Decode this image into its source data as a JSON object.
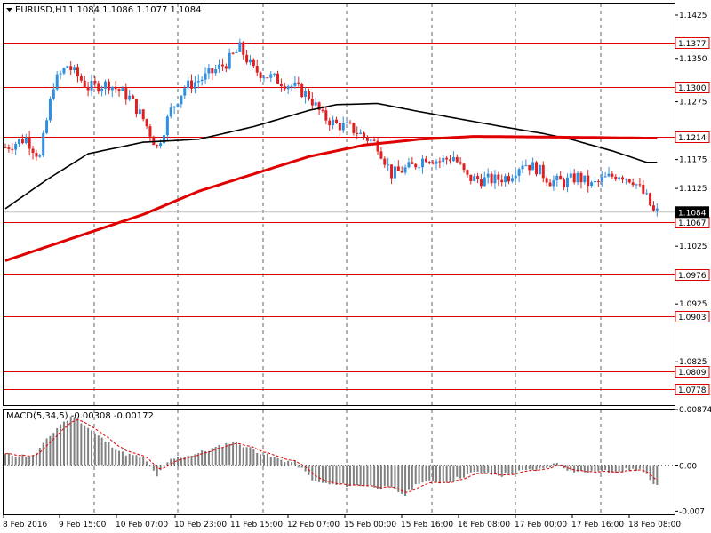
{
  "header": {
    "symbol": "EURUSD,H1",
    "ohlc": "1.1084 1.1086 1.1077 1.1084"
  },
  "indicator": {
    "label": "MACD(5,34,5) -0.00308 -0.00172"
  },
  "colors": {
    "bull": "#2f8fe0",
    "bear": "#e02020",
    "ma_fast": "#000000",
    "ma_slow": "#e00000",
    "level_line": "#e00000",
    "macd_hist": "#808080",
    "macd_signal": "#e00000"
  },
  "chart_data": {
    "type": "candlestick",
    "price_axis": {
      "range": [
        1.075,
        1.1445
      ],
      "ticks": [
        "1.1425",
        "1.1350",
        "1.1275",
        "1.1175",
        "1.1125",
        "1.1025",
        "1.0925",
        "1.0825"
      ]
    },
    "current_price": "1.1084",
    "levels": [
      "1.1377",
      "1.1300",
      "1.1214",
      "1.1067",
      "1.0976",
      "1.0903",
      "1.0809",
      "1.0778"
    ],
    "macd_axis": {
      "range": [
        -0.0075,
        0.00874
      ],
      "ticks": [
        "0.00874",
        "0.00",
        "-0.007"
      ]
    },
    "time_labels": [
      "8 Feb 2016",
      "9 Feb 15:00",
      "10 Feb 07:00",
      "10 Feb 23:00",
      "11 Feb 15:00",
      "12 Feb 07:00",
      "15 Feb 00:00",
      "15 Feb 16:00",
      "16 Feb 08:00",
      "17 Feb 00:00",
      "17 Feb 16:00",
      "18 Feb 08:00"
    ],
    "anchors": [
      [
        0,
        1.1196
      ],
      [
        6,
        1.1212
      ],
      [
        10,
        1.1178
      ],
      [
        14,
        1.1306
      ],
      [
        18,
        1.1338
      ],
      [
        24,
        1.13
      ],
      [
        30,
        1.1306
      ],
      [
        36,
        1.1282
      ],
      [
        40,
        1.1245
      ],
      [
        44,
        1.1196
      ],
      [
        48,
        1.126
      ],
      [
        52,
        1.13
      ],
      [
        58,
        1.1318
      ],
      [
        64,
        1.1342
      ],
      [
        68,
        1.1368
      ],
      [
        72,
        1.133
      ],
      [
        78,
        1.1315
      ],
      [
        84,
        1.13
      ],
      [
        88,
        1.1285
      ],
      [
        92,
        1.125
      ],
      [
        96,
        1.1235
      ],
      [
        100,
        1.123
      ],
      [
        104,
        1.1215
      ],
      [
        108,
        1.12
      ],
      [
        112,
        1.115
      ],
      [
        118,
        1.1163
      ],
      [
        122,
        1.118
      ],
      [
        126,
        1.1172
      ],
      [
        130,
        1.118
      ],
      [
        134,
        1.1143
      ],
      [
        138,
        1.114
      ],
      [
        142,
        1.114
      ],
      [
        146,
        1.1146
      ],
      [
        150,
        1.117
      ],
      [
        154,
        1.116
      ],
      [
        158,
        1.1138
      ],
      [
        162,
        1.1136
      ],
      [
        166,
        1.1145
      ],
      [
        170,
        1.113
      ],
      [
        174,
        1.1142
      ],
      [
        178,
        1.115
      ],
      [
        182,
        1.114
      ],
      [
        186,
        1.1108
      ],
      [
        188,
        1.1084
      ]
    ],
    "ma_fast_points": [
      [
        0,
        1.109
      ],
      [
        12,
        1.114
      ],
      [
        24,
        1.1185
      ],
      [
        40,
        1.1205
      ],
      [
        56,
        1.121
      ],
      [
        72,
        1.1232
      ],
      [
        88,
        1.126
      ],
      [
        96,
        1.127
      ],
      [
        108,
        1.1272
      ],
      [
        120,
        1.1258
      ],
      [
        132,
        1.1245
      ],
      [
        144,
        1.1232
      ],
      [
        156,
        1.122
      ],
      [
        164,
        1.121
      ],
      [
        176,
        1.119
      ],
      [
        186,
        1.117
      ]
    ],
    "ma_slow_points": [
      [
        0,
        1.1
      ],
      [
        20,
        1.104
      ],
      [
        40,
        1.108
      ],
      [
        56,
        1.112
      ],
      [
        72,
        1.115
      ],
      [
        88,
        1.118
      ],
      [
        104,
        1.12
      ],
      [
        120,
        1.121
      ],
      [
        136,
        1.1215
      ],
      [
        156,
        1.1214
      ],
      [
        172,
        1.1213
      ],
      [
        186,
        1.1212
      ]
    ],
    "macd_anchors": [
      [
        0,
        0.0018
      ],
      [
        8,
        0.0015
      ],
      [
        16,
        0.0065
      ],
      [
        20,
        0.0078
      ],
      [
        26,
        0.005
      ],
      [
        34,
        0.002
      ],
      [
        40,
        0.0012
      ],
      [
        44,
        -0.0015
      ],
      [
        48,
        0.001
      ],
      [
        56,
        0.002
      ],
      [
        62,
        0.003
      ],
      [
        66,
        0.0038
      ],
      [
        72,
        0.0025
      ],
      [
        78,
        0.0012
      ],
      [
        84,
        0.0005
      ],
      [
        90,
        -0.0025
      ],
      [
        96,
        -0.003
      ],
      [
        104,
        -0.003
      ],
      [
        112,
        -0.0035
      ],
      [
        116,
        -0.0045
      ],
      [
        120,
        -0.0025
      ],
      [
        128,
        -0.0025
      ],
      [
        136,
        -0.001
      ],
      [
        144,
        -0.0015
      ],
      [
        150,
        -0.0008
      ],
      [
        156,
        -0.0005
      ],
      [
        160,
        0.0005
      ],
      [
        164,
        -0.0008
      ],
      [
        170,
        -0.001
      ],
      [
        176,
        -0.0008
      ],
      [
        184,
        -0.0005
      ],
      [
        186,
        -0.0015
      ],
      [
        188,
        -0.0031
      ]
    ]
  }
}
